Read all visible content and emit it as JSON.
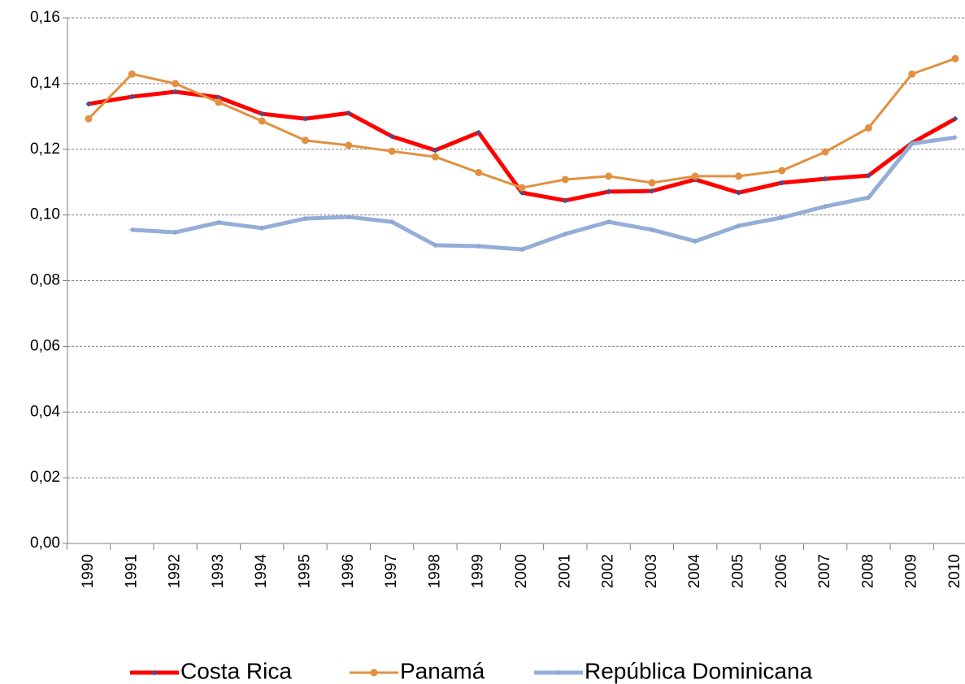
{
  "chart_data": {
    "type": "line",
    "categories": [
      "1990",
      "1991",
      "1992",
      "1993",
      "1994",
      "1995",
      "1996",
      "1997",
      "1998",
      "1999",
      "2000",
      "2001",
      "2002",
      "2003",
      "2004",
      "2005",
      "2006",
      "2007",
      "2008",
      "2009",
      "2010"
    ],
    "series": [
      {
        "name": "Costa Rica",
        "color": "#ff0000",
        "marker_color": "#4b4f8c",
        "values": [
          0.1338,
          0.136,
          0.1375,
          0.1358,
          0.1308,
          0.1293,
          0.131,
          0.1239,
          0.1197,
          0.1251,
          0.1068,
          0.1044,
          0.1071,
          0.1073,
          0.1108,
          0.1068,
          0.1098,
          0.111,
          0.112,
          0.1219,
          0.1293
        ]
      },
      {
        "name": "Panamá",
        "color": "#e0913f",
        "marker_color": "#e0913f",
        "values": [
          0.1293,
          0.1429,
          0.14,
          0.1343,
          0.1286,
          0.1227,
          0.1212,
          0.1194,
          0.1177,
          0.1129,
          0.1083,
          0.1108,
          0.1118,
          0.1098,
          0.1118,
          0.1118,
          0.1135,
          0.1192,
          0.1265,
          0.1429,
          0.1476
        ]
      },
      {
        "name": "República Dominicana",
        "color": "#95aed8",
        "marker_color": "#8aa4d2",
        "values": [
          null,
          0.0955,
          0.0947,
          0.0977,
          0.096,
          0.0989,
          0.0994,
          0.0979,
          0.0908,
          0.0905,
          0.0895,
          0.0942,
          0.0979,
          0.0955,
          0.092,
          0.0967,
          0.0992,
          0.1026,
          0.1053,
          0.1217,
          0.1236
        ]
      }
    ],
    "ylim": [
      0,
      0.16
    ],
    "yticks": [
      {
        "value": 0,
        "label": "0,00"
      },
      {
        "value": 0.02,
        "label": "0,02"
      },
      {
        "value": 0.04,
        "label": "0,04"
      },
      {
        "value": 0.06,
        "label": "0,06"
      },
      {
        "value": 0.08,
        "label": "0,08"
      },
      {
        "value": 0.1,
        "label": "0,10"
      },
      {
        "value": 0.12,
        "label": "0,12"
      },
      {
        "value": 0.14,
        "label": "0,14"
      },
      {
        "value": 0.16,
        "label": "0,16"
      }
    ],
    "grid": true,
    "legend": "bottom"
  }
}
